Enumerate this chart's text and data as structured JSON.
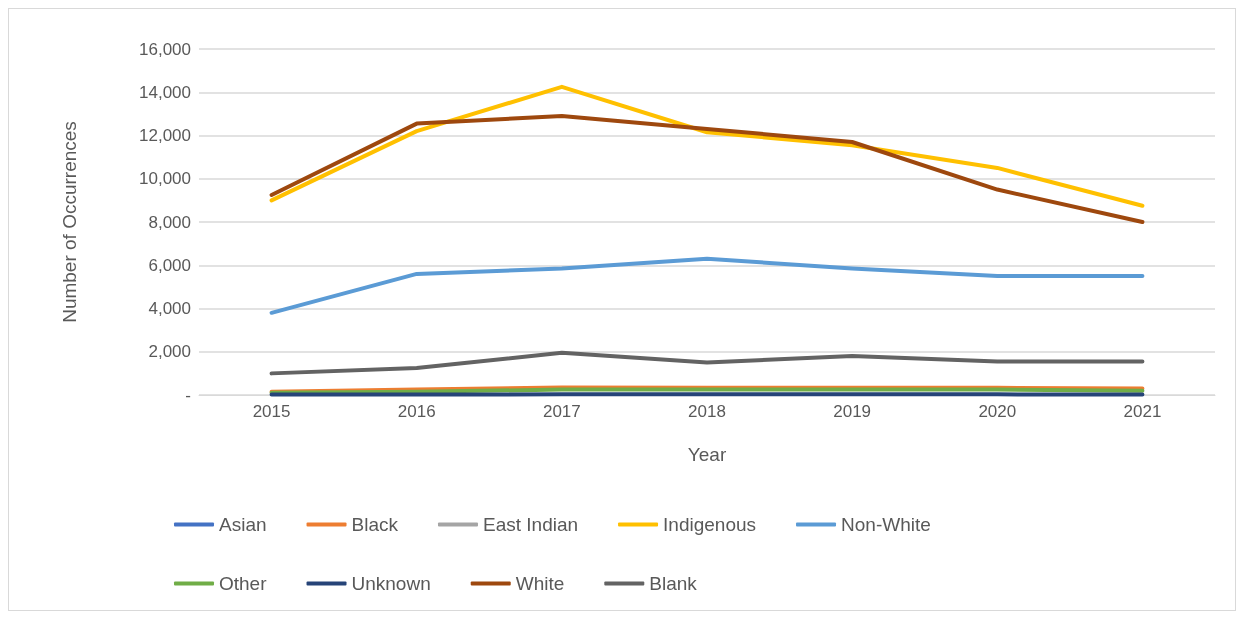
{
  "chart_data": {
    "type": "line",
    "xlabel": "Year",
    "ylabel": "Number of Occurrences",
    "categories": [
      "2015",
      "2016",
      "2017",
      "2018",
      "2019",
      "2020",
      "2021"
    ],
    "series": [
      {
        "name": "Asian",
        "color": "#4472c4",
        "values": [
          null,
          null,
          null,
          null,
          null,
          null,
          null
        ]
      },
      {
        "name": "Black",
        "color": "#ed7d31",
        "values": [
          150,
          250,
          350,
          330,
          330,
          330,
          300
        ]
      },
      {
        "name": "East Indian",
        "color": "#a5a5a5",
        "values": [
          null,
          null,
          null,
          null,
          null,
          null,
          null
        ]
      },
      {
        "name": "Indigenous",
        "color": "#ffc000",
        "values": [
          9000,
          12200,
          14250,
          12150,
          11550,
          10500,
          8750
        ]
      },
      {
        "name": "Non-White",
        "color": "#5b9bd5",
        "values": [
          3800,
          5600,
          5850,
          6300,
          5850,
          5500,
          5500
        ]
      },
      {
        "name": "Other",
        "color": "#70ad47",
        "values": [
          100,
          150,
          250,
          250,
          250,
          250,
          200
        ]
      },
      {
        "name": "Unknown",
        "color": "#264478",
        "values": [
          20,
          20,
          30,
          30,
          30,
          30,
          20
        ]
      },
      {
        "name": "White",
        "color": "#9e480e",
        "values": [
          9250,
          12550,
          12900,
          12300,
          11700,
          9500,
          8000
        ]
      },
      {
        "name": "Blank",
        "color": "#636363",
        "values": [
          1000,
          1250,
          1950,
          1500,
          1800,
          1550,
          1550
        ]
      }
    ],
    "ylim": [
      0,
      16000
    ],
    "yticks": [
      {
        "value": 0,
        "label": "-"
      },
      {
        "value": 2000,
        "label": "2,000"
      },
      {
        "value": 4000,
        "label": "4,000"
      },
      {
        "value": 6000,
        "label": "6,000"
      },
      {
        "value": 8000,
        "label": "8,000"
      },
      {
        "value": 10000,
        "label": "10,000"
      },
      {
        "value": 12000,
        "label": "12,000"
      },
      {
        "value": 14000,
        "label": "14,000"
      },
      {
        "value": 16000,
        "label": "16,000"
      }
    ],
    "grid": "y",
    "legend": "bottom",
    "marker": "none",
    "line_style": "solid"
  }
}
